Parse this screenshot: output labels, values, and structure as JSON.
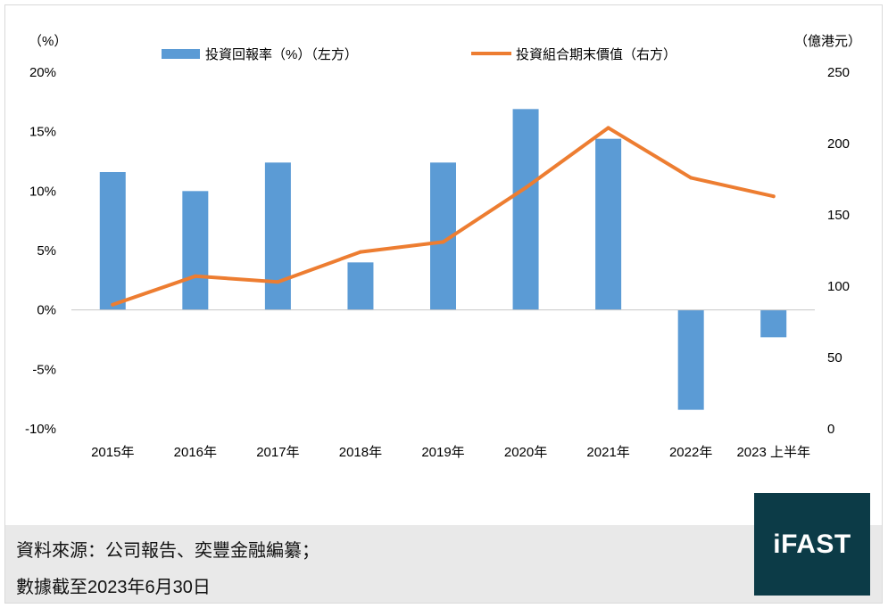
{
  "chart_data": {
    "type": "bar",
    "categories": [
      "2015年",
      "2016年",
      "2017年",
      "2018年",
      "2019年",
      "2020年",
      "2021年",
      "2022年",
      "2023 上半年"
    ],
    "series": [
      {
        "name": "投資回報率（%）（左方）",
        "type": "bar",
        "axis": "left",
        "color": "#5b9bd5",
        "values": [
          11.6,
          10.0,
          12.4,
          4.0,
          12.4,
          16.9,
          14.4,
          -8.4,
          -2.3
        ]
      },
      {
        "name": "投資組合期末價值（右方）",
        "type": "line",
        "axis": "right",
        "color": "#ed7d31",
        "values": [
          87,
          107,
          103,
          124,
          131,
          169,
          211,
          176,
          163
        ]
      }
    ],
    "left_axis": {
      "unit": "（%）",
      "min": -10,
      "max": 20,
      "ticks": [
        {
          "value": 20,
          "label": "20%"
        },
        {
          "value": 15,
          "label": "15%"
        },
        {
          "value": 10,
          "label": "10%"
        },
        {
          "value": 5,
          "label": "5%"
        },
        {
          "value": 0,
          "label": "0%"
        },
        {
          "value": -5,
          "label": "-5%"
        },
        {
          "value": -10,
          "label": "-10%"
        }
      ]
    },
    "right_axis": {
      "unit": "（億港元）",
      "min": 0,
      "max": 250,
      "ticks": [
        {
          "value": 250,
          "label": "250"
        },
        {
          "value": 200,
          "label": "200"
        },
        {
          "value": 150,
          "label": "150"
        },
        {
          "value": 100,
          "label": "100"
        },
        {
          "value": 50,
          "label": "50"
        },
        {
          "value": 0,
          "label": "0"
        }
      ]
    },
    "legend_position": "top",
    "grid": false
  },
  "footer": {
    "source_line1": "資料來源：公司報告、奕豐金融編纂；",
    "source_line2": "數據截至2023年6月30日"
  },
  "logo": {
    "text": "iFAST",
    "color": "#0c3b47"
  }
}
